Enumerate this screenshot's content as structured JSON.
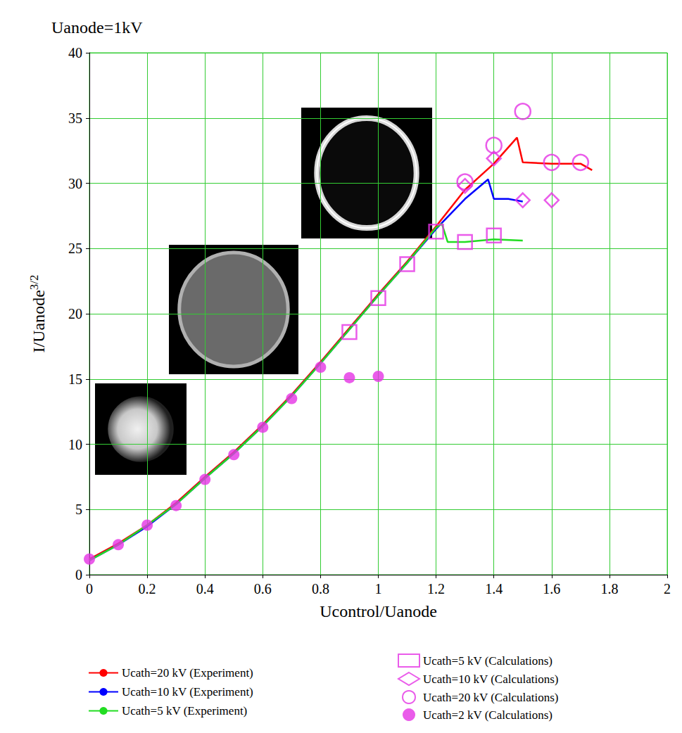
{
  "chart_data": {
    "type": "line",
    "title": "Uanode=1kV",
    "xlabel": "Ucontrol/Uanode",
    "ylabel": {
      "text": "I/Uanode",
      "superscript": "3/2"
    },
    "xlim": [
      0,
      2
    ],
    "xticks": [
      0,
      0.2,
      0.4,
      0.6,
      0.8,
      1,
      1.2,
      1.4,
      1.6,
      1.8,
      2
    ],
    "ylim": [
      0,
      40
    ],
    "yticks": [
      0,
      5,
      10,
      15,
      20,
      25,
      30,
      35,
      40
    ],
    "grid": true,
    "legend": "bottom",
    "series": [
      {
        "name": "Ucath=20 kV (Experiment)",
        "type": "line",
        "color": "#ff0000",
        "line_style": "solid",
        "x": [
          0,
          0.1,
          0.2,
          0.3,
          0.4,
          0.5,
          0.6,
          0.7,
          0.8,
          0.9,
          1.0,
          1.1,
          1.2,
          1.3,
          1.4,
          1.48,
          1.5,
          1.6,
          1.7,
          1.74
        ],
        "values": [
          1.2,
          2.4,
          3.8,
          5.5,
          7.5,
          9.4,
          11.5,
          13.8,
          16.3,
          18.9,
          21.5,
          24.0,
          26.7,
          29.5,
          31.5,
          33.5,
          31.6,
          31.5,
          31.5,
          31.0
        ]
      },
      {
        "name": "Ucath=10 kV (Experiment)",
        "type": "line",
        "color": "#0000ff",
        "line_style": "solid",
        "x": [
          0,
          0.1,
          0.2,
          0.3,
          0.4,
          0.5,
          0.6,
          0.7,
          0.8,
          0.9,
          1.0,
          1.1,
          1.2,
          1.3,
          1.38,
          1.4,
          1.45,
          1.5
        ],
        "values": [
          1.1,
          2.3,
          3.7,
          5.4,
          7.4,
          9.3,
          11.4,
          13.7,
          16.2,
          18.8,
          21.4,
          23.9,
          26.5,
          28.8,
          30.3,
          28.8,
          28.8,
          28.6
        ]
      },
      {
        "name": "Ucath=5 kV (Experiment)",
        "type": "line",
        "color": "#22dd22",
        "line_style": "solid",
        "x": [
          0,
          0.1,
          0.2,
          0.3,
          0.4,
          0.5,
          0.6,
          0.7,
          0.8,
          0.9,
          1.0,
          1.1,
          1.2,
          1.22,
          1.24,
          1.3,
          1.4,
          1.5
        ],
        "values": [
          1.1,
          2.3,
          3.8,
          5.4,
          7.4,
          9.3,
          11.4,
          13.7,
          16.2,
          18.8,
          21.4,
          23.9,
          26.6,
          26.9,
          25.5,
          25.5,
          25.7,
          25.6
        ]
      },
      {
        "name": "Ucath=5 kV (Calculations)",
        "type": "scatter",
        "color": "#e533e5",
        "marker": "square_open",
        "x": [
          0.9,
          1.0,
          1.1,
          1.2,
          1.3,
          1.4
        ],
        "values": [
          18.6,
          21.2,
          23.8,
          26.3,
          25.5,
          26.0
        ]
      },
      {
        "name": "Ucath=10 kV (Calculations)",
        "type": "scatter",
        "color": "#e533e5",
        "marker": "diamond_open",
        "x": [
          1.3,
          1.4,
          1.5,
          1.6
        ],
        "values": [
          29.8,
          31.9,
          28.7,
          28.7
        ]
      },
      {
        "name": "Ucath=20 kV (Calculations)",
        "type": "scatter",
        "color": "#e533e5",
        "marker": "circle_open",
        "x": [
          1.3,
          1.4,
          1.5,
          1.6,
          1.7
        ],
        "values": [
          30.1,
          32.9,
          35.5,
          31.6,
          31.6
        ]
      },
      {
        "name": "Ucath=2 kV (Calculations)",
        "type": "scatter",
        "color": "#e533e5",
        "marker": "circle",
        "x": [
          0,
          0.1,
          0.2,
          0.3,
          0.4,
          0.5,
          0.6,
          0.7,
          0.8,
          0.9,
          1.0
        ],
        "values": [
          1.2,
          2.3,
          3.8,
          5.3,
          7.3,
          9.2,
          11.3,
          13.5,
          15.9,
          15.1,
          15.2
        ]
      }
    ]
  }
}
